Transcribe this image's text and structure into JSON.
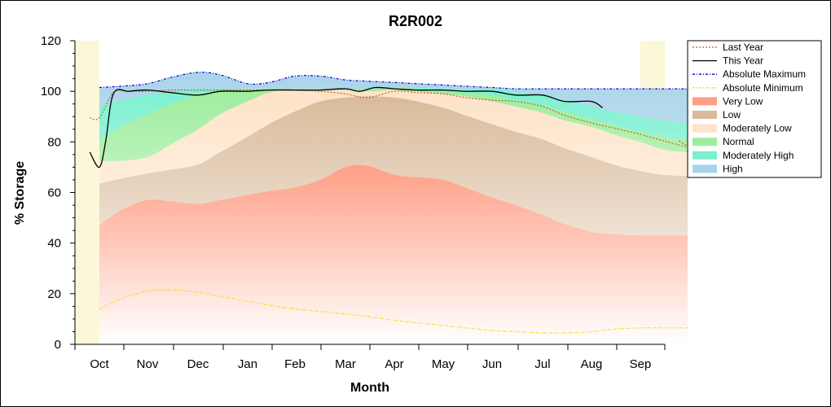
{
  "chart_data": {
    "type": "area",
    "title": "R2R002",
    "xlabel": "Month",
    "ylabel": "% Storage",
    "ylim": [
      0,
      120
    ],
    "yticks": [
      0,
      20,
      40,
      60,
      80,
      100,
      120
    ],
    "categories": [
      "Oct",
      "Nov",
      "Dec",
      "Jan",
      "Feb",
      "Mar",
      "Apr",
      "May",
      "Jun",
      "Jul",
      "Aug",
      "Sep"
    ],
    "grid": false,
    "legend_position": "right",
    "bands_x": [
      "Oct 1",
      "Oct 15",
      "Nov 1",
      "Nov 15",
      "Dec 1",
      "Dec 15",
      "Jan 1",
      "Jan 15",
      "Feb 1",
      "Feb 15",
      "Mar 1",
      "Mar 15",
      "Apr 1",
      "Apr 15",
      "May 1",
      "May 15",
      "Jun 1",
      "Jun 15",
      "Jul 1",
      "Jul 15",
      "Aug 1",
      "Aug 15",
      "Sep 1",
      "Sep 15",
      "Sep 30"
    ],
    "bands": [
      {
        "name": "Very Low",
        "color": "#ff9f85",
        "values": [
          47,
          53,
          57,
          56.5,
          55.5,
          57,
          59,
          60.5,
          62,
          65,
          70,
          70.5,
          67,
          66,
          65,
          62,
          58,
          55,
          51,
          47.5,
          44.5,
          43.5,
          43,
          43,
          43
        ]
      },
      {
        "name": "Low",
        "color": "#d9bb9b",
        "values": [
          63.5,
          65.5,
          67.5,
          69,
          71,
          76,
          82,
          87,
          92,
          96,
          97.5,
          98,
          97.5,
          96,
          93.5,
          90.5,
          87,
          84,
          81,
          77.5,
          74,
          71,
          68.5,
          67,
          66.5
        ]
      },
      {
        "name": "Moderately Low",
        "color": "#fde3c8",
        "values": [
          72.5,
          72.5,
          74,
          79,
          85,
          91,
          96,
          99.5,
          100.5,
          100.5,
          100.5,
          100,
          100.5,
          100,
          99,
          98,
          96,
          94,
          91.5,
          88.5,
          86,
          83,
          80,
          77,
          76
        ]
      },
      {
        "name": "Normal",
        "color": "#9ded9d",
        "values": [
          80.5,
          86,
          91,
          95,
          98.5,
          100.5,
          101,
          101,
          101,
          101,
          101,
          101,
          101.5,
          101,
          100,
          99.5,
          98.5,
          96.5,
          94.5,
          92,
          89,
          86.5,
          84,
          82,
          81
        ]
      },
      {
        "name": "Moderately High",
        "color": "#7cf0cf",
        "values": [
          94,
          96.5,
          98.5,
          100,
          101,
          101,
          101,
          101,
          101,
          101,
          101,
          101,
          101.5,
          101.5,
          101,
          101,
          101,
          100,
          98.5,
          96.5,
          94,
          92,
          90,
          88.5,
          87.5
        ]
      },
      {
        "name": "High",
        "color": "#a9d3ea",
        "values": [
          101.5,
          102,
          103,
          105.5,
          107.5,
          106.5,
          103,
          103.5,
          106,
          106,
          104.5,
          104,
          103.5,
          103,
          102.5,
          102,
          101.5,
          101,
          101,
          101,
          101,
          101,
          101,
          101,
          101
        ]
      }
    ],
    "series": [
      {
        "name": "Last Year",
        "color": "#c06020",
        "style": "dotted",
        "x": [
          "Sep 25",
          "Oct 1",
          "Oct 10",
          "Oct 20",
          "Nov 1",
          "Nov 15",
          "Dec 1",
          "Dec 15",
          "Jan 1",
          "Jan 15",
          "Feb 1",
          "Feb 15",
          "Mar 1",
          "Mar 15",
          "Apr 1",
          "Apr 15",
          "May 1",
          "May 15",
          "Jun 1",
          "Jun 15",
          "Jul 1",
          "Jul 15",
          "Aug 1",
          "Aug 15",
          "Sep 1",
          "Sep 15",
          "Sep 30",
          "Oct 10"
        ],
        "values": [
          89.5,
          89.5,
          99.5,
          100,
          100,
          100.5,
          100.5,
          100.5,
          100.5,
          100.5,
          100.5,
          100,
          99,
          97.5,
          100,
          99.5,
          99,
          97.5,
          96.5,
          96,
          94,
          90.5,
          87.5,
          85.5,
          83,
          80.5,
          78,
          80.5
        ]
      },
      {
        "name": "This Year",
        "color": "#000000",
        "style": "solid",
        "x": [
          "Sep 25",
          "Oct 1",
          "Oct 5",
          "Oct 10",
          "Oct 20",
          "Nov 1",
          "Nov 15",
          "Dec 1",
          "Dec 15",
          "Jan 1",
          "Jan 15",
          "Feb 1",
          "Feb 15",
          "Mar 1",
          "Mar 10",
          "Mar 20",
          "Apr 1",
          "Apr 15",
          "May 1",
          "May 15",
          "Jun 1",
          "Jun 15",
          "Jul 1",
          "Jul 15",
          "Aug 1",
          "Aug 8"
        ],
        "values": [
          76,
          70,
          80,
          99,
          100,
          100.5,
          99.5,
          98.5,
          100,
          100,
          100.5,
          100.5,
          100.5,
          101,
          100,
          101.5,
          101,
          100.5,
          100.5,
          100,
          100,
          98.5,
          98.5,
          96,
          96,
          93.5
        ]
      },
      {
        "name": "Absolute Maximum",
        "color": "#0000cc",
        "style": "dashdot",
        "x": [
          "Oct 1",
          "Oct 15",
          "Nov 1",
          "Nov 15",
          "Dec 1",
          "Dec 15",
          "Jan 1",
          "Jan 15",
          "Feb 1",
          "Feb 15",
          "Mar 1",
          "Mar 15",
          "Apr 1",
          "Apr 15",
          "May 1",
          "May 15",
          "Jun 1",
          "Jun 15",
          "Jul 1",
          "Jul 15",
          "Aug 1",
          "Aug 15",
          "Sep 1",
          "Sep 15",
          "Sep 30"
        ],
        "values": [
          101.5,
          102,
          103,
          105.5,
          107.5,
          106.5,
          103,
          103.5,
          106,
          106,
          104.5,
          104,
          103.5,
          103,
          102.5,
          102,
          101.5,
          101,
          101,
          101,
          101,
          101,
          101,
          101,
          101
        ]
      },
      {
        "name": "Absolute Minimum",
        "color": "#f0e000",
        "style": "dashdot",
        "x": [
          "Oct 1",
          "Oct 15",
          "Nov 1",
          "Nov 15",
          "Dec 1",
          "Dec 15",
          "Jan 1",
          "Jan 15",
          "Feb 1",
          "Feb 15",
          "Mar 1",
          "Mar 15",
          "Apr 1",
          "Apr 15",
          "May 1",
          "May 15",
          "Jun 1",
          "Jun 15",
          "Jul 1",
          "Jul 15",
          "Aug 1",
          "Aug 15",
          "Sep 1",
          "Sep 15",
          "Sep 30"
        ],
        "values": [
          14,
          18,
          21,
          21.5,
          20.5,
          19,
          17,
          15.5,
          14,
          13,
          12,
          11,
          9.5,
          8.5,
          7.5,
          6.5,
          5.5,
          5,
          4.5,
          4.5,
          5,
          6,
          6.5,
          6.5,
          6.5
        ]
      }
    ],
    "legend": [
      {
        "label": "Last Year",
        "kind": "line",
        "color": "#c06020",
        "style": "dotted"
      },
      {
        "label": "This Year",
        "kind": "line",
        "color": "#000000",
        "style": "solid"
      },
      {
        "label": "Absolute Maximum",
        "kind": "line",
        "color": "#0000cc",
        "style": "dashdot"
      },
      {
        "label": "Absolute Minimum",
        "kind": "line",
        "color": "#f0e000",
        "style": "dashdot"
      },
      {
        "label": "Very Low",
        "kind": "band",
        "color": "#ff9f85"
      },
      {
        "label": "Low",
        "kind": "band",
        "color": "#d9bb9b"
      },
      {
        "label": "Moderately Low",
        "kind": "band",
        "color": "#fde3c8"
      },
      {
        "label": "Normal",
        "kind": "band",
        "color": "#9ded9d"
      },
      {
        "label": "Moderately High",
        "kind": "band",
        "color": "#7cf0cf"
      },
      {
        "label": "High",
        "kind": "band",
        "color": "#a9d3ea"
      }
    ],
    "background_color": "#fefce6"
  }
}
